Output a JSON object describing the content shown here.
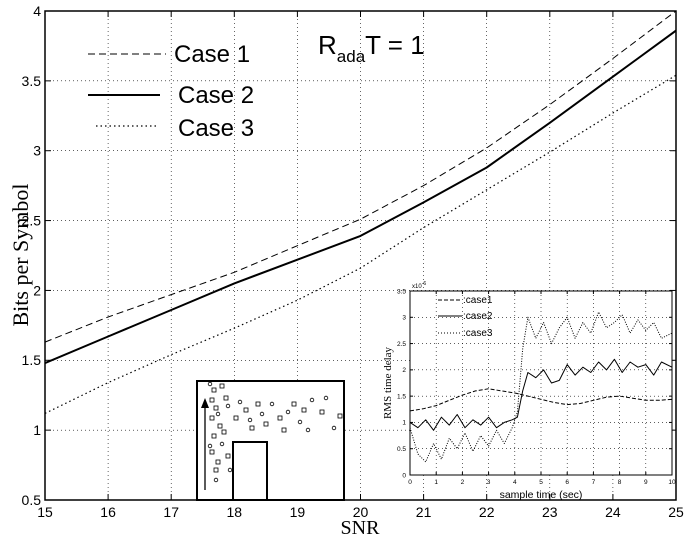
{
  "chart_data": [
    {
      "type": "line",
      "xlabel": "SNR",
      "ylabel": "Bits per Symbol",
      "annotation": {
        "base": "R",
        "sub": "ada",
        "rest": "T = 1"
      },
      "xlim": [
        15,
        25
      ],
      "ylim": [
        0.5,
        4
      ],
      "xticks": [
        "15",
        "16",
        "17",
        "18",
        "19",
        "20",
        "21",
        "22",
        "23",
        "24",
        "25"
      ],
      "yticks": [
        "0.5",
        "1",
        "1.5",
        "2",
        "2.5",
        "3",
        "3.5",
        "4"
      ],
      "grid": true,
      "legend_position": "top-left",
      "series": [
        {
          "name": "Case 1",
          "style": "dashed",
          "x": [
            15,
            16,
            17,
            18,
            19,
            20,
            21,
            22,
            23,
            24,
            25
          ],
          "y": [
            1.63,
            1.81,
            1.97,
            2.13,
            2.32,
            2.51,
            2.75,
            3.02,
            3.33,
            3.66,
            4.0
          ]
        },
        {
          "name": "Case 2",
          "style": "solid",
          "x": [
            15,
            16,
            17,
            18,
            19,
            20,
            21,
            22,
            23,
            24,
            25
          ],
          "y": [
            1.48,
            1.67,
            1.86,
            2.05,
            2.22,
            2.39,
            2.63,
            2.88,
            3.2,
            3.53,
            3.86
          ]
        },
        {
          "name": "Case 3",
          "style": "dotted",
          "x": [
            15,
            16,
            17,
            18,
            19,
            20,
            21,
            22,
            23,
            24,
            25
          ],
          "y": [
            1.12,
            1.34,
            1.54,
            1.73,
            1.93,
            2.16,
            2.45,
            2.72,
            2.99,
            3.27,
            3.54
          ]
        }
      ]
    },
    {
      "type": "line",
      "xlabel": "sample time (sec)",
      "ylabel": "RMS time delay",
      "multiplier": "x10",
      "multiplier_exp": "-6",
      "xlim": [
        0,
        10
      ],
      "ylim": [
        0,
        3.5
      ],
      "xticks": [
        "0",
        "1",
        "2",
        "3",
        "4",
        "5",
        "6",
        "7",
        "8",
        "9",
        "10"
      ],
      "yticks": [
        "0",
        "0.5",
        "1",
        "1.5",
        "2",
        "2.5",
        "3",
        "3.5"
      ],
      "grid": true,
      "legend_position": "top-left",
      "series": [
        {
          "name": ":case1",
          "style": "dashed",
          "x": [
            0,
            0.5,
            1,
            1.5,
            2,
            2.5,
            3,
            3.5,
            4,
            4.5,
            5,
            5.5,
            6,
            6.5,
            7,
            7.5,
            8,
            8.5,
            9,
            9.5,
            10
          ],
          "y": [
            1.22,
            1.26,
            1.32,
            1.42,
            1.52,
            1.6,
            1.64,
            1.6,
            1.56,
            1.5,
            1.44,
            1.38,
            1.34,
            1.36,
            1.42,
            1.48,
            1.5,
            1.46,
            1.42,
            1.42,
            1.44
          ]
        },
        {
          "name": ":case2",
          "style": "solid",
          "x": [
            0,
            0.3,
            0.6,
            0.9,
            1.2,
            1.5,
            1.8,
            2.1,
            2.4,
            2.7,
            3,
            3.3,
            3.6,
            3.9,
            4.1,
            4.3,
            4.5,
            4.8,
            5.1,
            5.4,
            5.7,
            6,
            6.3,
            6.6,
            6.9,
            7.2,
            7.5,
            7.8,
            8.1,
            8.4,
            8.7,
            9,
            9.3,
            9.6,
            10
          ],
          "y": [
            1.0,
            0.9,
            1.05,
            0.85,
            1.1,
            0.95,
            1.15,
            0.9,
            1.05,
            0.95,
            1.1,
            0.9,
            1.0,
            1.05,
            1.1,
            1.6,
            1.95,
            1.85,
            2.0,
            1.75,
            1.8,
            2.1,
            1.9,
            2.05,
            1.95,
            2.15,
            2.0,
            2.2,
            1.95,
            2.15,
            2.05,
            2.1,
            1.9,
            2.15,
            2.05
          ]
        },
        {
          "name": ":case3",
          "style": "dotted",
          "x": [
            0,
            0.3,
            0.6,
            0.9,
            1.2,
            1.5,
            1.8,
            2.1,
            2.4,
            2.7,
            3,
            3.3,
            3.6,
            3.9,
            4.1,
            4.3,
            4.5,
            4.8,
            5.1,
            5.4,
            5.7,
            6,
            6.3,
            6.6,
            6.9,
            7.2,
            7.5,
            7.8,
            8.1,
            8.4,
            8.7,
            9,
            9.3,
            9.6,
            10
          ],
          "y": [
            0.9,
            0.4,
            0.25,
            0.6,
            0.3,
            0.7,
            0.5,
            0.8,
            0.45,
            0.75,
            0.55,
            0.85,
            0.6,
            0.9,
            1.2,
            2.4,
            3.0,
            2.6,
            2.9,
            2.5,
            2.8,
            3.0,
            2.6,
            2.9,
            2.7,
            3.1,
            2.8,
            2.9,
            3.05,
            2.7,
            2.95,
            2.75,
            2.9,
            2.6,
            2.7
          ]
        }
      ]
    }
  ]
}
